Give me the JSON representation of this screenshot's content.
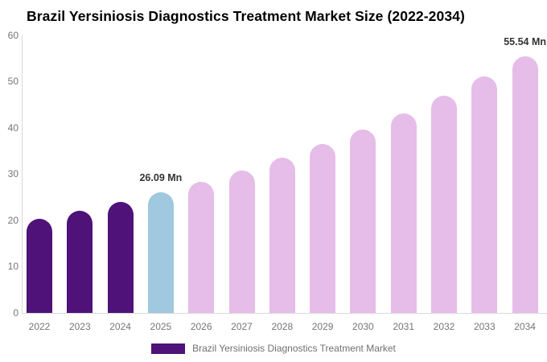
{
  "title": "Brazil Yersiniosis Diagnostics Treatment Market Size (2022-2034)",
  "legend": {
    "label": "Brazil Yersiniosis Diagnostics Treatment Market"
  },
  "annotations": [
    {
      "year": "2025",
      "text": "26.09 Mn"
    },
    {
      "year": "2034",
      "text": "55.54 Mn"
    }
  ],
  "colors": {
    "historical_bar": "#4E1278",
    "current_bar": "#A0C8DE",
    "forecast_bar": "#E5BDE8",
    "axis_line": "#D9D9D9",
    "tick_label": "#757575",
    "value_label": "#333333",
    "legend_text": "#707070",
    "title_text": "#000000",
    "background": "#FFFFFF"
  },
  "chart_data": {
    "type": "bar",
    "title": "Brazil Yersiniosis Diagnostics Treatment Market Size (2022-2034)",
    "unit": "Mn",
    "categories": [
      "2022",
      "2023",
      "2024",
      "2025",
      "2026",
      "2027",
      "2028",
      "2029",
      "2030",
      "2031",
      "2032",
      "2033",
      "2034"
    ],
    "values": [
      20.28,
      22.06,
      23.99,
      26.09,
      28.38,
      30.86,
      33.57,
      36.51,
      39.71,
      43.18,
      46.97,
      51.08,
      55.54
    ],
    "labeled_values": {
      "2025": "26.09 Mn",
      "2034": "55.54 Mn"
    },
    "bar_colors": [
      "#4E1278",
      "#4E1278",
      "#4E1278",
      "#A0C8DE",
      "#E5BDE8",
      "#E5BDE8",
      "#E5BDE8",
      "#E5BDE8",
      "#E5BDE8",
      "#E5BDE8",
      "#E5BDE8",
      "#E5BDE8",
      "#E5BDE8"
    ],
    "xlabel": "",
    "ylabel": "",
    "ylim": [
      0,
      60
    ],
    "yticks": [
      0,
      10,
      20,
      30,
      40,
      50,
      60
    ],
    "grid": false,
    "legend_position": "bottom"
  }
}
